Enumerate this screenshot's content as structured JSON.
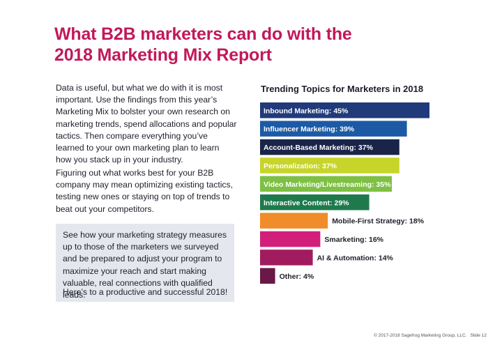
{
  "header": {
    "title_line1": "What B2B marketers can do with the",
    "title_line2": "2018 Marketing Mix Report"
  },
  "body": {
    "paragraph1": "Data is useful, but what we do with it is most important. Use the findings from this year’s Marketing Mix to bolster your own research on marketing trends, spend allocations and popular tactics. Then compare everything you’ve learned to your own marketing plan to learn how you stack up in your industry.",
    "paragraph2": "Figuring out what works best for your B2B company may mean optimizing existing tactics, testing new ones or staying on top of trends to beat out your competitors."
  },
  "callout": {
    "text": "See how your marketing strategy measures up to those of the marketers we surveyed and be prepared to adjust your program to maximize your reach and start making valuable, real connections with qualified leads.",
    "closing": "Here’s to a productive and successful 2018!"
  },
  "chart_data": {
    "type": "bar",
    "orientation": "horizontal",
    "title": "Trending Topics for Marketers in 2018",
    "categories": [
      "Inbound Marketing",
      "Influencer Marketing",
      "Account-Based Marketing",
      "Personalization",
      "Video Marketing/Livestreaming",
      "Interactive Content",
      "Mobile-First Strategy",
      "Smarketing",
      "AI & Automation",
      "Other"
    ],
    "values": [
      45,
      39,
      37,
      37,
      35,
      29,
      18,
      16,
      14,
      4
    ],
    "labels": [
      "Inbound Marketing: 45%",
      "Influencer Marketing: 39%",
      "Account-Based Marketing: 37%",
      "Personalization: 37%",
      "Video Marketing/Livestreaming: 35%",
      "Interactive Content: 29%",
      "Mobile-First Strategy: 18%",
      "Smarketing: 16%",
      "AI & Automation: 14%",
      "Other: 4%"
    ],
    "colors": [
      "#213a7a",
      "#1c5aa6",
      "#1a2448",
      "#c7d42a",
      "#7ec043",
      "#1e7a4c",
      "#f08c2a",
      "#d21f7a",
      "#a01c5e",
      "#6a1848"
    ],
    "label_inside": [
      true,
      true,
      true,
      true,
      true,
      true,
      false,
      false,
      false,
      false
    ],
    "xlim": [
      0,
      45
    ],
    "xlabel": "",
    "ylabel": "",
    "grid": false,
    "legend": "none"
  },
  "footer": {
    "copyright": "© 2017-2018 Sagefrog Marketing Group, LLC.",
    "slide": "Slide 12"
  }
}
